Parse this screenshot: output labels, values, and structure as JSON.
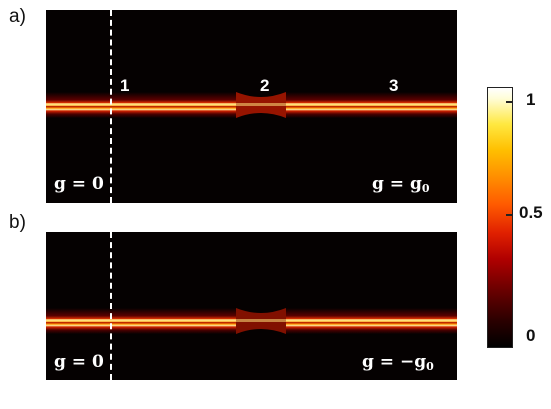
{
  "panels": [
    {
      "letter": "a)",
      "markers": [
        "1",
        "2",
        "3"
      ],
      "left_eq": {
        "lhs": "g = 0"
      },
      "right_eq": {
        "lhs": "g = g",
        "sub": "0"
      }
    },
    {
      "letter": "b)",
      "left_eq": {
        "lhs": "g = 0"
      },
      "right_eq": {
        "lhs": "g = −g",
        "sub": "0"
      }
    }
  ],
  "colorbar": {
    "ticks": [
      "1",
      "0.5",
      "0"
    ],
    "colors": {
      "low": "#000000",
      "mid": "#e02000",
      "high": "#ffffff"
    }
  },
  "band_colors": {
    "outer": "#c01000",
    "mid": "#ff7000",
    "core": "#fff0a0",
    "gap": "#300000"
  }
}
